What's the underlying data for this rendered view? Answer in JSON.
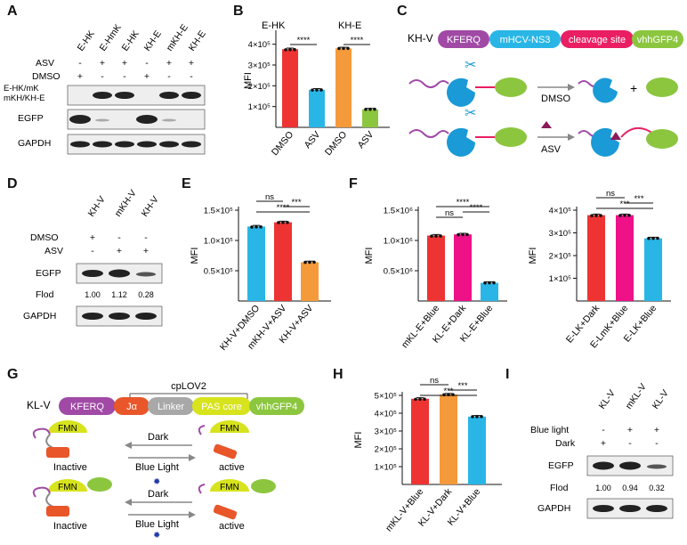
{
  "letters": {
    "A": "A",
    "B": "B",
    "C": "C",
    "D": "D",
    "E": "E",
    "F": "F",
    "G": "G",
    "H": "H",
    "I": "I"
  },
  "colors": {
    "red": "#ee3333",
    "orange": "#f59a3a",
    "green": "#8cc63f",
    "cyan": "#29b6e6",
    "magenta": "#ee1188",
    "purple": "#a04aa6",
    "pink": "#e91e63",
    "lime": "#d7e31c",
    "dark_orange": "#e8562a",
    "grey": "#a8a8a8"
  },
  "icons": [
    "scissors-icon",
    "lamp-icon",
    "asv-triangle-icon",
    "protein-sphere-icon"
  ],
  "panelA": {
    "lanes": [
      "E-HK",
      "E-HmK",
      "E-HK",
      "KH-E",
      "mKH-E",
      "KH-E"
    ],
    "asv_label": "ASV",
    "asv": [
      "-",
      "+",
      "+",
      "-",
      "+",
      "+"
    ],
    "dmso_label": "DMSO",
    "dmso": [
      "+",
      "-",
      "-",
      "+",
      "-",
      "-"
    ],
    "blot_labels": [
      "E-HK/mK",
      "mKH/KH-E",
      "EGFP",
      "GAPDH"
    ]
  },
  "panelB": {
    "ylabel": "MFI",
    "ticks": [
      "1×10⁵",
      "2×10⁵",
      "3×10⁵",
      "4×10⁵"
    ],
    "group_titles": [
      "E-HK",
      "KH-E"
    ],
    "sig": [
      "****",
      "****"
    ],
    "categories": [
      "DMSO",
      "ASV",
      "DMSO",
      "ASV"
    ]
  },
  "panelC": {
    "construct_label": "KH-V",
    "segments": [
      "KFERQ",
      "mHCV-NS3",
      "cleavage site",
      "vhhGFP4"
    ],
    "plus": "+",
    "dmso": "DMSO",
    "asv": "ASV"
  },
  "panelD": {
    "lanes": [
      "KH-V",
      "mKH-V",
      "KH-V"
    ],
    "dmso_label": "DMSO",
    "dmso": [
      "+",
      "-",
      "-"
    ],
    "asv_label": "ASV",
    "asv": [
      "-",
      "+",
      "+"
    ],
    "egfp": "EGFP",
    "flod_label": "Flod",
    "flod": [
      "1.00",
      "1.12",
      "0.28"
    ],
    "gapdh": "GAPDH"
  },
  "panelE": {
    "ylabel": "MFI",
    "ticks": [
      "0.5×10⁵",
      "1.0×10⁵",
      "1.5×10⁵"
    ],
    "sig": [
      "ns",
      "***",
      "****"
    ],
    "categories": [
      "KH-V+DMSO",
      "mKH-V+ASV",
      "KH-V+ASV"
    ]
  },
  "panelF1": {
    "ylabel": "MFI",
    "ticks": [
      "0.5×10⁶",
      "1.0×10⁶",
      "1.5×10⁶"
    ],
    "sig": [
      "ns",
      "****",
      "****"
    ],
    "categories": [
      "mKL-E+Blue",
      "KL-E+Dark",
      "KL-E+Blue"
    ]
  },
  "panelF2": {
    "ylabel": "MFI",
    "ticks": [
      "1×10⁵",
      "2×10⁵",
      "3×10⁵",
      "4×10⁵"
    ],
    "sig": [
      "ns",
      "***",
      "***"
    ],
    "categories": [
      "E-LK+Dark",
      "E-LmK+Blue",
      "E-LK+Blue"
    ]
  },
  "panelG": {
    "cplov2": "cpLOV2",
    "construct_label": "KL-V",
    "segments": [
      "KFERQ",
      "Jα",
      "Linker",
      "PAS core",
      "vhhGFP4"
    ],
    "fmn": "FMN",
    "dark": "Dark",
    "blue_light": "Blue Light",
    "inactive": "Inactive",
    "active": "active"
  },
  "panelH": {
    "ylabel": "MFI",
    "ticks": [
      "1×10⁵",
      "2×10⁵",
      "3×10⁵",
      "4×10⁵",
      "5×10⁵"
    ],
    "sig": [
      "ns",
      "***",
      "***"
    ],
    "categories": [
      "mKL-V+Blue",
      "KL-V+Dark",
      "KL-V+Blue"
    ]
  },
  "panelI": {
    "lanes": [
      "KL-V",
      "mKL-V",
      "KL-V"
    ],
    "blue_label": "Blue light",
    "blue": [
      "-",
      "+",
      "+"
    ],
    "dark_label": "Dark",
    "dark": [
      "+",
      "-",
      "-"
    ],
    "egfp": "EGFP",
    "flod_label": "Flod",
    "flod": [
      "1.00",
      "0.94",
      "0.32"
    ],
    "gapdh": "GAPDH"
  },
  "chart_data": [
    {
      "type": "bar",
      "panel": "B",
      "ylabel": "MFI",
      "ylim": [
        0,
        450000
      ],
      "categories": [
        "DMSO",
        "ASV",
        "DMSO",
        "ASV"
      ],
      "groups": [
        "E-HK",
        "E-HK",
        "KH-E",
        "KH-E"
      ],
      "values": [
        376000,
        181000,
        380000,
        86000
      ],
      "colors": [
        "#ee3333",
        "#29b6e6",
        "#f59a3a",
        "#8cc63f"
      ]
    },
    {
      "type": "bar",
      "panel": "E",
      "ylabel": "MFI",
      "ylim": [
        0,
        150000
      ],
      "categories": [
        "KH-V+DMSO",
        "mKH-V+ASV",
        "KH-V+ASV"
      ],
      "values": [
        123000,
        130000,
        64000
      ],
      "colors": [
        "#29b6e6",
        "#ee3333",
        "#f59a3a"
      ]
    },
    {
      "type": "bar",
      "panel": "F-left",
      "ylabel": "MFI",
      "ylim": [
        0,
        1500000
      ],
      "categories": [
        "mKL-E+Blue",
        "KL-E+Dark",
        "KL-E+Blue"
      ],
      "values": [
        1080000,
        1100000,
        300000
      ],
      "colors": [
        "#ee3333",
        "#ee1188",
        "#29b6e6"
      ]
    },
    {
      "type": "bar",
      "panel": "F-right",
      "ylabel": "MFI",
      "ylim": [
        0,
        400000
      ],
      "categories": [
        "E-LK+Dark",
        "E-LmK+Blue",
        "E-LK+Blue"
      ],
      "values": [
        378000,
        378000,
        276000
      ],
      "colors": [
        "#ee3333",
        "#ee1188",
        "#29b6e6"
      ]
    },
    {
      "type": "bar",
      "panel": "H",
      "ylabel": "MFI",
      "ylim": [
        0,
        500000
      ],
      "categories": [
        "mKL-V+Blue",
        "KL-V+Dark",
        "KL-V+Blue"
      ],
      "values": [
        481000,
        505000,
        381000
      ],
      "colors": [
        "#ee3333",
        "#f59a3a",
        "#29b6e6"
      ]
    }
  ]
}
